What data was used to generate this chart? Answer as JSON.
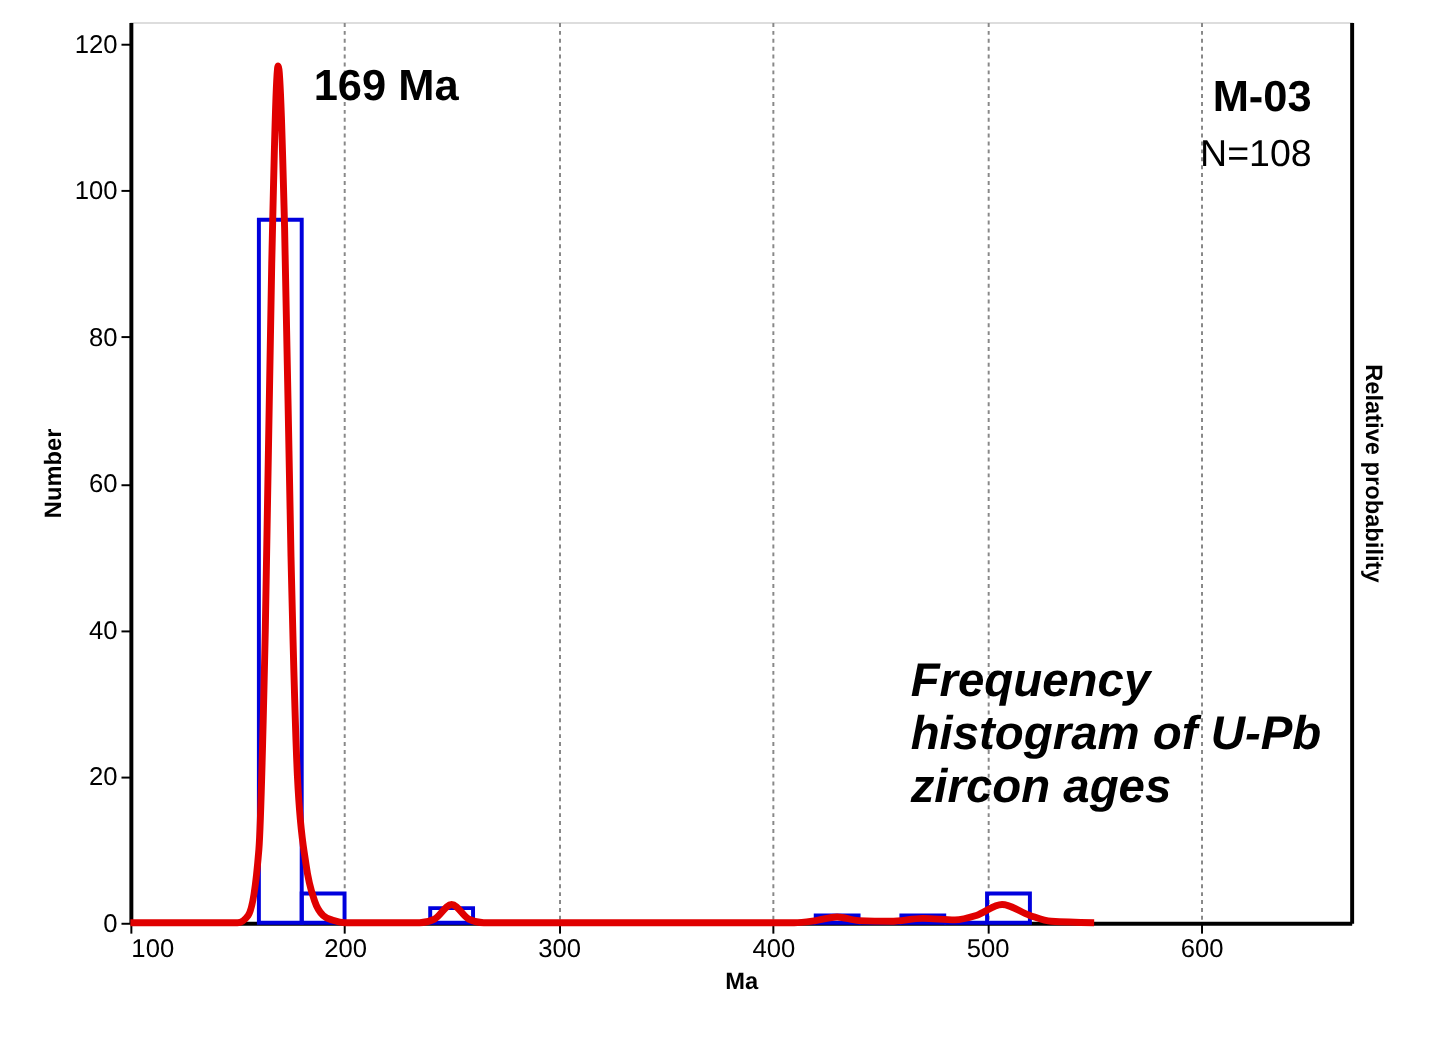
{
  "chart_data": {
    "type": "histogram",
    "xlabel": "Ma",
    "ylabel": "Number",
    "y2label": "Relative probability",
    "bins": [
      160,
      180,
      200,
      220,
      240,
      260,
      280,
      300,
      320,
      340,
      360,
      380,
      400,
      420,
      440,
      460,
      480,
      500,
      520
    ],
    "values": [
      96,
      4,
      0,
      0,
      2,
      0,
      0,
      0,
      0,
      0,
      0,
      0,
      0,
      1,
      0,
      1,
      0,
      4
    ],
    "color": "#0000dd",
    "series": [
      {
        "type": "line",
        "color": "#e00000",
        "x": [
          100,
          150,
          155,
          160,
          163,
          166,
          169,
          172,
          175,
          178,
          182,
          186,
          190,
          195,
          200,
          235,
          242,
          250,
          258,
          265,
          410,
          420,
          430,
          440,
          455,
          470,
          485,
          495,
          507,
          520,
          530,
          550
        ],
        "values": [
          0,
          0,
          1,
          10,
          40,
          90,
          117,
          95,
          50,
          20,
          8,
          3,
          1,
          0.3,
          0,
          0,
          0.5,
          2.5,
          0.5,
          0,
          0,
          0.3,
          0.8,
          0.3,
          0.2,
          0.6,
          0.4,
          1,
          2.5,
          1,
          0.2,
          0
        ]
      }
    ],
    "xlim": [
      100,
      670
    ],
    "xticks": [
      100,
      200,
      300,
      400,
      500,
      600
    ],
    "ylim": [
      0,
      123
    ],
    "yticks": [
      0,
      20,
      40,
      60,
      80,
      100,
      120
    ],
    "grid": "x",
    "line_style": "solid",
    "marker": "none",
    "annotations": [
      {
        "text": "169 Ma",
        "x": 169,
        "y": 117
      },
      "M-03",
      "N=108",
      "Frequency\nhistogram of U-Pb\nzircon ages"
    ]
  }
}
